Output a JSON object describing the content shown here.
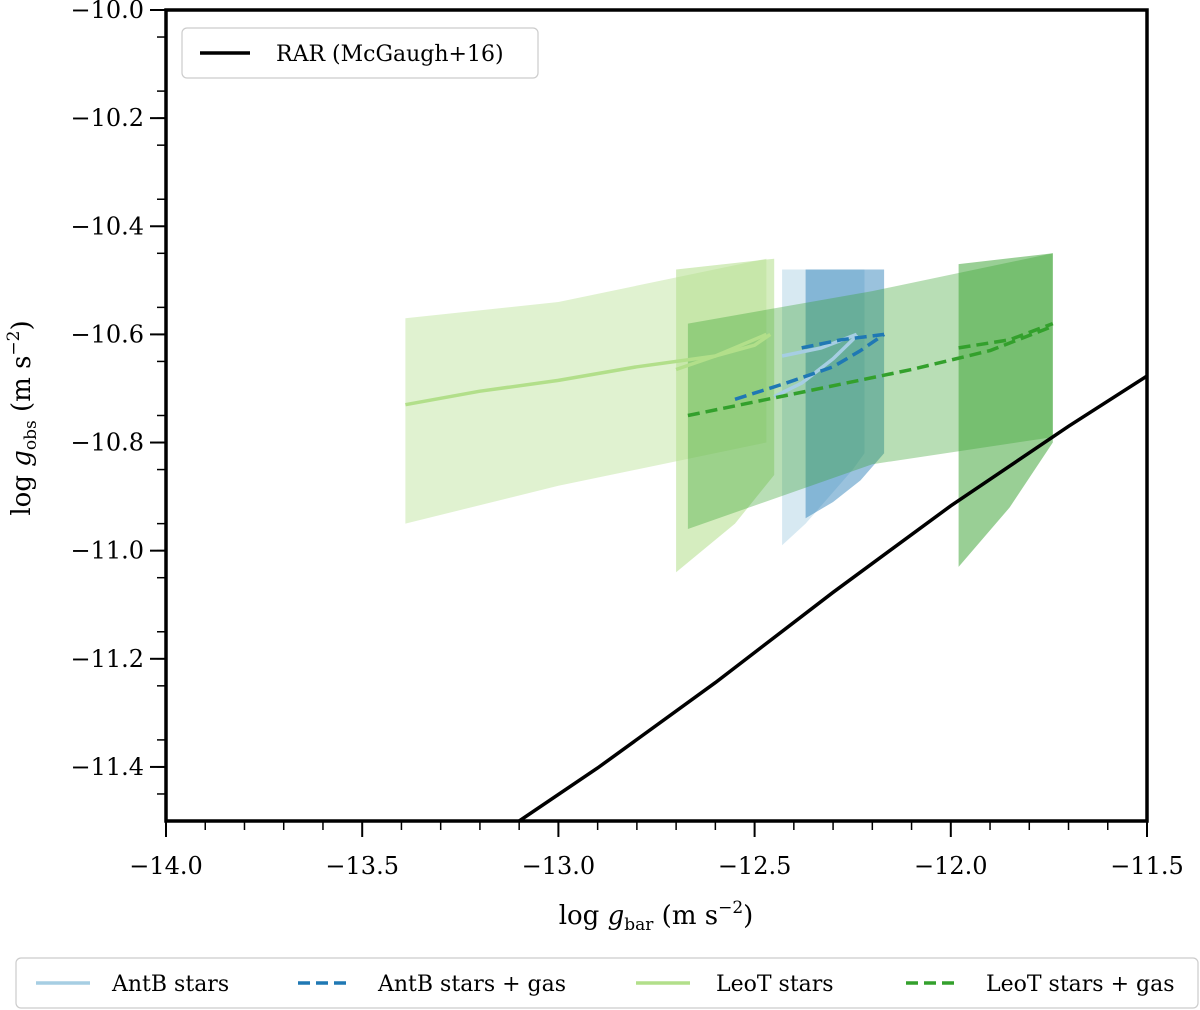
{
  "chart_data": {
    "type": "line",
    "xlabel": "log g_bar (m s^-2)",
    "ylabel": "log g_obs (m s^-2)",
    "xlim": [
      -14.0,
      -11.5
    ],
    "ylim": [
      -11.5,
      -10.0
    ],
    "x_ticks": [
      -14.0,
      -13.5,
      -13.0,
      -12.5,
      -12.0,
      -11.5
    ],
    "x_tick_labels": [
      "−14.0",
      "−13.5",
      "−13.0",
      "−12.5",
      "−12.0",
      "−11.5"
    ],
    "y_ticks": [
      -10.0,
      -10.2,
      -10.4,
      -10.6,
      -10.8,
      -11.0,
      -11.2,
      -11.4
    ],
    "y_tick_labels": [
      "−10.0",
      "−10.2",
      "−10.4",
      "−10.6",
      "−10.8",
      "−11.0",
      "−11.2",
      "−11.4"
    ],
    "x_label_parts": {
      "prefix": "log ",
      "sym": "g",
      "sub": "bar",
      "unit": " (m s",
      "exp": "−2",
      "close": ")"
    },
    "y_label_parts": {
      "prefix": "log ",
      "sym": "g",
      "sub": "obs",
      "unit": " (m s",
      "exp": "−2",
      "close": ")"
    },
    "rar": {
      "name": "RAR (McGaugh+16)",
      "color": "#000000",
      "x": [
        -13.1,
        -12.9,
        -12.6,
        -12.3,
        -12.0,
        -11.7,
        -11.5
      ],
      "y": [
        -11.5,
        -11.402,
        -11.244,
        -11.077,
        -10.917,
        -10.77,
        -10.677
      ]
    },
    "series": [
      {
        "name": "AntB stars",
        "style": "solid",
        "color": "#a6cee3",
        "line": {
          "x": [
            -12.45,
            -12.38,
            -12.3,
            -12.25,
            -12.24
          ],
          "y": [
            -10.715,
            -10.69,
            -10.645,
            -10.61,
            -10.6
          ]
        },
        "line2": {
          "x": [
            -12.43,
            -12.33,
            -12.24
          ],
          "y": [
            -10.64,
            -10.625,
            -10.6
          ]
        },
        "bands": [
          {
            "color": "#a6cee3",
            "opacity": 0.45,
            "x": [
              -12.43,
              -12.37,
              -12.31,
              -12.25,
              -12.22,
              -12.22,
              -12.25,
              -12.31,
              -12.37,
              -12.43
            ],
            "upper": [
              -10.48,
              -10.48,
              -10.48,
              -10.48,
              -10.48,
              -10.82,
              -10.85,
              -10.9,
              -10.95,
              -10.99
            ]
          }
        ]
      },
      {
        "name": "AntB stars + gas",
        "style": "dashed",
        "color": "#1f78b4",
        "line": {
          "x": [
            -12.55,
            -12.42,
            -12.3,
            -12.23,
            -12.17
          ],
          "y": [
            -10.72,
            -10.69,
            -10.66,
            -10.63,
            -10.6
          ]
        },
        "line2": {
          "x": [
            -12.38,
            -12.28,
            -12.17
          ],
          "y": [
            -10.625,
            -10.61,
            -10.6
          ]
        },
        "bands": [
          {
            "color": "#1f78b4",
            "opacity": 0.45,
            "x": [
              -12.37,
              -12.3,
              -12.23,
              -12.17,
              -12.17,
              -12.23,
              -12.3,
              -12.37
            ],
            "upper": [
              -10.48,
              -10.48,
              -10.48,
              -10.48,
              -10.82,
              -10.87,
              -10.91,
              -10.94
            ]
          }
        ]
      },
      {
        "name": "LeoT stars",
        "style": "solid",
        "color": "#b2df8a",
        "line": {
          "x": [
            -13.39,
            -13.2,
            -13.0,
            -12.8,
            -12.6,
            -12.47
          ],
          "y": [
            -10.73,
            -10.705,
            -10.685,
            -10.66,
            -10.64,
            -10.6
          ]
        },
        "line2": {
          "x": [
            -12.7,
            -12.6,
            -12.5,
            -12.46
          ],
          "y": [
            -10.665,
            -10.64,
            -10.62,
            -10.6
          ]
        },
        "bands": [
          {
            "color": "#b2df8a",
            "opacity": 0.4,
            "x": [
              -13.39,
              -13.0,
              -12.47,
              -12.47,
              -13.0,
              -13.39
            ],
            "upper": [
              -10.57,
              -10.54,
              -10.46,
              -10.8,
              -10.88,
              -10.95
            ]
          },
          {
            "color": "#b2df8a",
            "opacity": 0.55,
            "x": [
              -12.7,
              -12.45,
              -12.45,
              -12.55,
              -12.7
            ],
            "upper": [
              -10.48,
              -10.46,
              -10.86,
              -10.95,
              -11.04
            ]
          }
        ]
      },
      {
        "name": "LeoT stars + gas",
        "style": "dashed",
        "color": "#33a02c",
        "line": {
          "x": [
            -12.67,
            -12.4,
            -12.1,
            -11.9,
            -11.74
          ],
          "y": [
            -10.75,
            -10.71,
            -10.665,
            -10.63,
            -10.585
          ]
        },
        "line2": {
          "x": [
            -11.98,
            -11.85,
            -11.74
          ],
          "y": [
            -10.625,
            -10.61,
            -10.58
          ]
        },
        "bands": [
          {
            "color": "#33a02c",
            "opacity": 0.35,
            "x": [
              -12.67,
              -12.2,
              -11.74,
              -11.74,
              -12.2,
              -12.67
            ],
            "upper": [
              -10.58,
              -10.52,
              -10.45,
              -10.79,
              -10.84,
              -10.96
            ]
          },
          {
            "color": "#33a02c",
            "opacity": 0.5,
            "x": [
              -11.98,
              -11.74,
              -11.74,
              -11.85,
              -11.98
            ],
            "upper": [
              -10.47,
              -10.45,
              -10.8,
              -10.92,
              -11.03
            ]
          }
        ]
      }
    ],
    "legend_inside": {
      "label": "RAR (McGaugh+16)",
      "placement": "top-left"
    },
    "legend_below": [
      {
        "label": "AntB stars",
        "style": "solid",
        "color": "#a6cee3"
      },
      {
        "label": "AntB stars + gas",
        "style": "dashed",
        "color": "#1f78b4"
      },
      {
        "label": "LeoT stars",
        "style": "solid",
        "color": "#b2df8a"
      },
      {
        "label": "LeoT stars + gas",
        "style": "dashed",
        "color": "#33a02c"
      }
    ]
  }
}
